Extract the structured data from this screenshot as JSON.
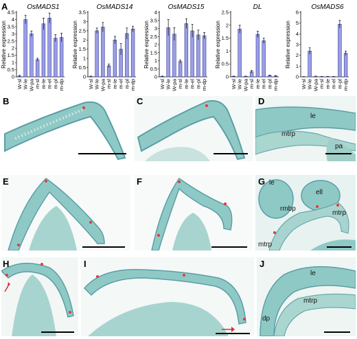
{
  "panels": {
    "A": "A",
    "B": "B",
    "C": "C",
    "D": "D",
    "E": "E",
    "F": "F",
    "G": "G",
    "H": "H",
    "I": "I",
    "J": "J"
  },
  "micro_labels": {
    "D": [
      "le",
      "mtrp",
      "pa"
    ],
    "G": [
      "le",
      "ell",
      "rmbp",
      "mtrp",
      "mtrp"
    ],
    "J": [
      "le",
      "mtrp",
      "dp"
    ]
  },
  "colors": {
    "bar_fill": "#9a9ee6",
    "bar_stroke": "#3a3f8f",
    "tissue": "#8fc9c6",
    "tissue_dark": "#5a9ea6",
    "stain": "#7a6fb0"
  },
  "chart_data": [
    {
      "type": "bar",
      "title": "OsMADS1",
      "ylabel": "Relative expression",
      "categories": [
        "W-sl",
        "W-le",
        "W-pa",
        "m-sl",
        "m-le",
        "m-el",
        "m-pl",
        "m-dp"
      ],
      "values": [
        0.05,
        4.0,
        3.0,
        1.2,
        3.7,
        4.1,
        2.7,
        2.75
      ],
      "errors": [
        0.05,
        0.3,
        0.2,
        0.1,
        0.4,
        0.35,
        0.25,
        0.3
      ],
      "ylim": [
        0,
        4.5
      ],
      "yticks": [
        "0",
        "0.5",
        "1",
        "1.5",
        "2",
        "2.5",
        "3",
        "3.5",
        "4",
        "4.5"
      ]
    },
    {
      "type": "bar",
      "title": "OsMADS14",
      "ylabel": "Relative expression",
      "categories": [
        "W-sl",
        "W-le",
        "W-pa",
        "m-sl",
        "m-le",
        "m-el",
        "m-pl",
        "m-dp"
      ],
      "values": [
        0.02,
        2.5,
        2.7,
        0.6,
        2.0,
        1.5,
        2.35,
        2.6
      ],
      "errors": [
        0.02,
        0.15,
        0.25,
        0.1,
        0.2,
        0.3,
        0.3,
        0.15
      ],
      "ylim": [
        0,
        3.5
      ],
      "yticks": [
        "0",
        "0.5",
        "1",
        "1.5",
        "2",
        "2.5",
        "3",
        "3.5"
      ]
    },
    {
      "type": "bar",
      "title": "OsMADS15",
      "ylabel": "Relative expression",
      "categories": [
        "W-sl",
        "W-le",
        "W-pa",
        "m-sl",
        "m-le",
        "m-el",
        "m-pl",
        "m-dp"
      ],
      "values": [
        0.03,
        3.05,
        2.65,
        0.95,
        3.3,
        2.85,
        2.6,
        2.55
      ],
      "errors": [
        0.02,
        0.5,
        0.4,
        0.1,
        0.3,
        0.4,
        0.3,
        0.2
      ],
      "ylim": [
        0,
        4
      ],
      "yticks": [
        "0",
        "0.5",
        "1",
        "1.5",
        "2",
        "2.5",
        "3",
        "3.5",
        "4"
      ]
    },
    {
      "type": "bar",
      "title": "DL",
      "ylabel": "Relative expression",
      "categories": [
        "W-sl",
        "W-le",
        "W-pa",
        "m-sl",
        "m-le",
        "m-el",
        "m-pl",
        "m-dp"
      ],
      "values": [
        0.02,
        1.85,
        0.02,
        0.2,
        1.65,
        1.4,
        0.05,
        0.03
      ],
      "errors": [
        0.01,
        0.15,
        0.01,
        0.05,
        0.12,
        0.1,
        0.02,
        0.02
      ],
      "ylim": [
        0,
        2.5
      ],
      "yticks": [
        "0",
        "0.5",
        "1",
        "1.5",
        "2",
        "2.5"
      ]
    },
    {
      "type": "bar",
      "title": "OsMADS6",
      "ylabel": "Relative expression",
      "categories": [
        "W-sl",
        "W-le",
        "W-pa",
        "m-sl",
        "m-le",
        "m-el",
        "m-pl",
        "m-dp"
      ],
      "values": [
        0.02,
        2.4,
        0.05,
        0.03,
        0.03,
        0.03,
        4.9,
        2.2
      ],
      "errors": [
        0.01,
        0.3,
        0.02,
        0.01,
        0.01,
        0.01,
        0.35,
        0.2
      ],
      "ylim": [
        0,
        6
      ],
      "yticks": [
        "0",
        "1",
        "2",
        "3",
        "4",
        "5",
        "6"
      ]
    }
  ]
}
